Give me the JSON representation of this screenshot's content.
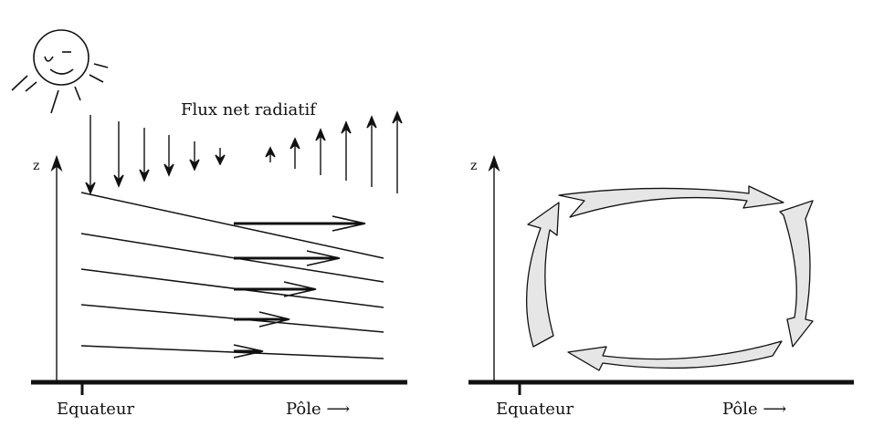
{
  "figure": {
    "left_panel": {
      "flux_label": "Flux net radiatif",
      "z_label": "z",
      "equator_label": "Equateur",
      "pole_label": "Pôle ⟶"
    },
    "right_panel": {
      "z_label": "z",
      "equator_label": "Equateur",
      "pole_label": "Pôle ⟶"
    },
    "colors": {
      "ink": "#111111",
      "circulation_fill": "#e6e6e6"
    },
    "icons": [
      "sun-icon",
      "flux-arrow",
      "circulation-arrow"
    ]
  }
}
